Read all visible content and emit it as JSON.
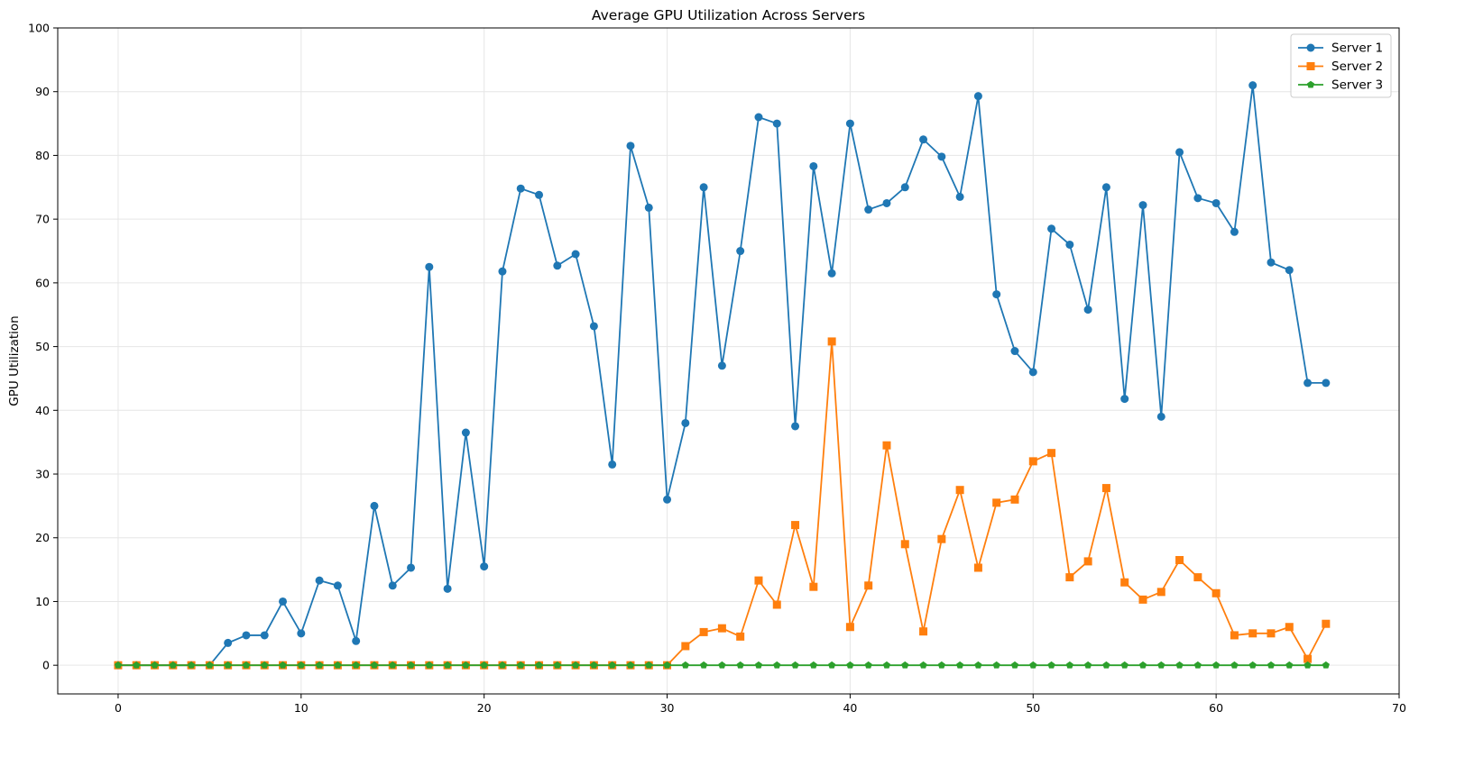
{
  "chart_data": {
    "type": "line",
    "title": "Average GPU Utilization Across Servers",
    "xlabel": "",
    "ylabel": "GPU Utilization",
    "xlim": [
      -3.3,
      70
    ],
    "ylim": [
      -4.5,
      100
    ],
    "xticks": [
      0,
      10,
      20,
      30,
      40,
      50,
      60,
      70
    ],
    "yticks": [
      0,
      10,
      20,
      30,
      40,
      50,
      60,
      70,
      80,
      90,
      100
    ],
    "grid": true,
    "legend_position": "top-right",
    "series": [
      {
        "name": "Server 1",
        "color": "#1f77b4",
        "marker": "circle",
        "values": [
          0,
          0,
          0,
          0,
          0,
          0,
          3.5,
          4.7,
          4.7,
          10,
          5,
          13.3,
          12.5,
          3.8,
          25,
          12.5,
          15.3,
          62.5,
          12,
          36.5,
          15.5,
          61.8,
          74.8,
          73.8,
          62.7,
          64.5,
          53.2,
          31.5,
          81.5,
          71.8,
          26,
          38,
          75,
          47,
          65,
          86,
          85,
          37.5,
          78.3,
          61.5,
          85,
          71.5,
          72.5,
          75,
          82.5,
          79.8,
          73.5,
          89.3,
          58.2,
          49.3,
          46,
          68.5,
          66,
          55.8,
          75,
          41.8,
          72.2,
          39,
          80.5,
          73.3,
          72.5,
          68,
          91,
          63.2,
          62,
          44.3,
          44.3
        ]
      },
      {
        "name": "Server 2",
        "color": "#ff7f0e",
        "marker": "square",
        "values": [
          0,
          0,
          0,
          0,
          0,
          0,
          0,
          0,
          0,
          0,
          0,
          0,
          0,
          0,
          0,
          0,
          0,
          0,
          0,
          0,
          0,
          0,
          0,
          0,
          0,
          0,
          0,
          0,
          0,
          0,
          0,
          3,
          5.2,
          5.8,
          4.5,
          13.3,
          9.5,
          22,
          12.3,
          50.8,
          6,
          12.5,
          34.5,
          19,
          5.3,
          19.8,
          27.5,
          15.3,
          25.5,
          26,
          32,
          33.3,
          13.8,
          16.3,
          27.8,
          13,
          10.3,
          11.5,
          16.5,
          13.8,
          11.3,
          4.7,
          5,
          5,
          6,
          1,
          6.5
        ]
      },
      {
        "name": "Server 3",
        "color": "#2ca02c",
        "marker": "pentagon",
        "values": [
          0,
          0,
          0,
          0,
          0,
          0,
          0,
          0,
          0,
          0,
          0,
          0,
          0,
          0,
          0,
          0,
          0,
          0,
          0,
          0,
          0,
          0,
          0,
          0,
          0,
          0,
          0,
          0,
          0,
          0,
          0,
          0,
          0,
          0,
          0,
          0,
          0,
          0,
          0,
          0,
          0,
          0,
          0,
          0,
          0,
          0,
          0,
          0,
          0,
          0,
          0,
          0,
          0,
          0,
          0,
          0,
          0,
          0,
          0,
          0,
          0,
          0,
          0,
          0,
          0,
          0,
          0
        ]
      }
    ],
    "x": [
      0,
      1,
      2,
      3,
      4,
      5,
      6,
      7,
      8,
      9,
      10,
      11,
      12,
      13,
      14,
      15,
      16,
      17,
      18,
      19,
      20,
      21,
      22,
      23,
      24,
      25,
      26,
      27,
      28,
      29,
      30,
      31,
      32,
      33,
      34,
      35,
      36,
      37,
      38,
      39,
      40,
      41,
      42,
      43,
      44,
      45,
      46,
      47,
      48,
      49,
      50,
      51,
      52,
      53,
      54,
      55,
      56,
      57,
      58,
      59,
      60,
      61,
      62,
      63,
      64,
      65,
      66
    ]
  }
}
